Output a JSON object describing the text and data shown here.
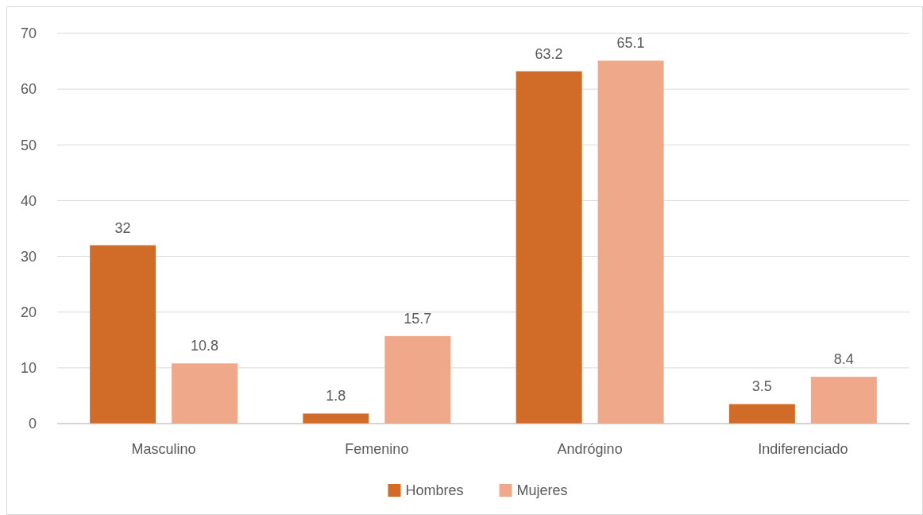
{
  "chart_data": {
    "type": "bar",
    "categories": [
      "Masculino",
      "Femenino",
      "Andrógino",
      "Indiferenciado"
    ],
    "series": [
      {
        "name": "Hombres",
        "color": "#d06b28",
        "values": [
          32,
          1.8,
          63.2,
          3.5
        ]
      },
      {
        "name": "Mujeres",
        "color": "#f0a88a",
        "values": [
          10.8,
          15.7,
          65.1,
          8.4
        ]
      }
    ],
    "ylim": [
      0,
      70
    ],
    "yticks": [
      0,
      10,
      20,
      30,
      40,
      50,
      60,
      70
    ],
    "grid": "y",
    "legend": "bottom",
    "data_labels": true
  }
}
